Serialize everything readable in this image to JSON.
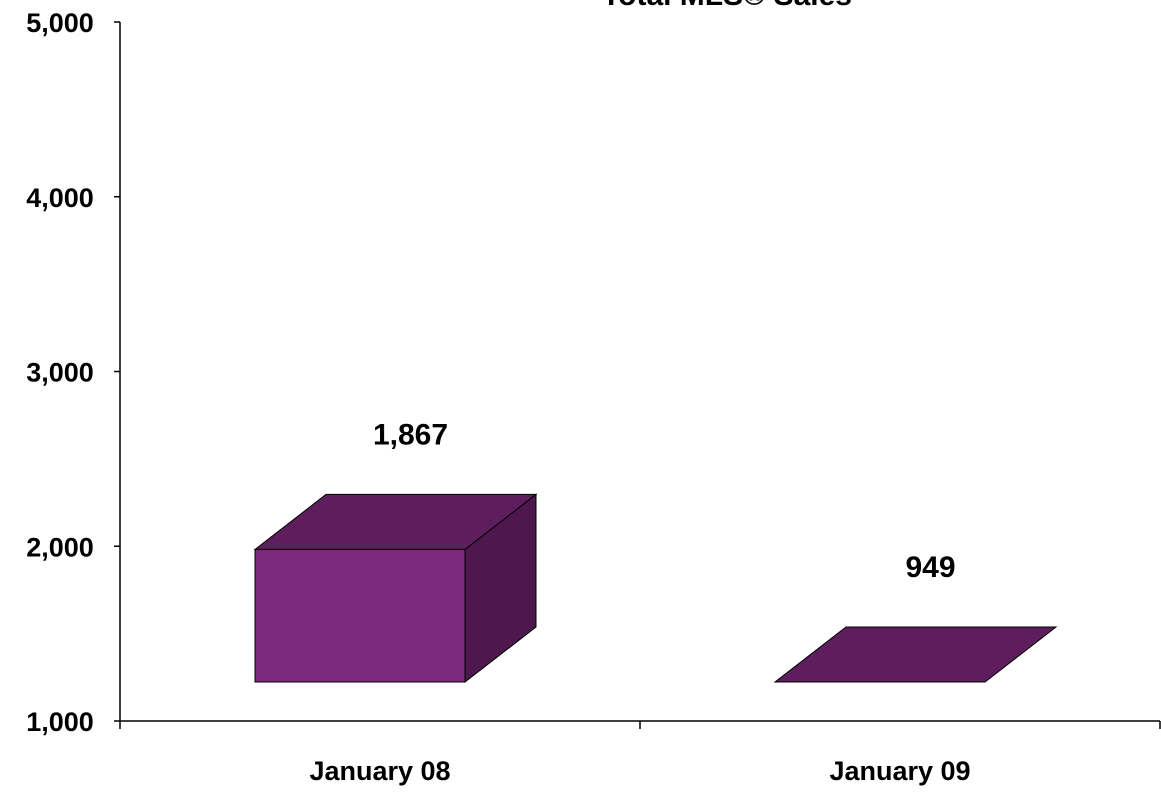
{
  "chart_data": {
    "type": "bar",
    "title": "Total MLS® Sales",
    "categories": [
      "January 08",
      "January 09"
    ],
    "values": [
      1867,
      949
    ],
    "data_labels": [
      "1,867",
      "949"
    ],
    "ylim": [
      1000,
      5000
    ],
    "yticks": [
      1000,
      2000,
      3000,
      4000,
      5000
    ],
    "ytick_labels": [
      "1,000",
      "2,000",
      "3,000",
      "4,000",
      "5,000"
    ],
    "xlabel": "",
    "ylabel": "",
    "grid": false,
    "style": "3d-column",
    "colors": {
      "front": "#7B2A7B",
      "top": "#5E1E5E",
      "side": "#4E184E",
      "edge": "#000000"
    }
  }
}
